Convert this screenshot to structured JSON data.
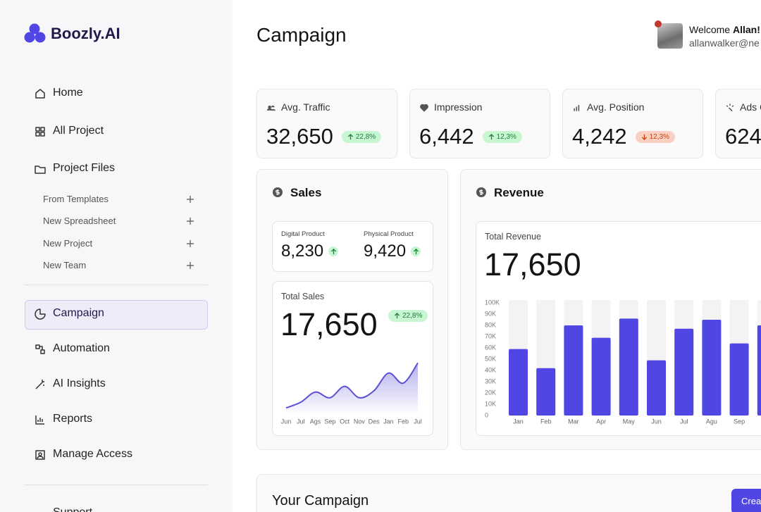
{
  "sidebar": {
    "logo": "Boozly.AI",
    "nav": [
      "Home",
      "All Project",
      "Project Files"
    ],
    "sub": [
      "From Templates",
      "New Spreadsheet",
      "New Project",
      "New Team"
    ],
    "nav2": [
      "Campaign",
      "Automation",
      "AI Insights",
      "Reports",
      "Manage Access"
    ],
    "active": "Campaign",
    "footer": "Support"
  },
  "header": {
    "title": "Campaign",
    "welcome": "Welcome",
    "user": "Allan!",
    "email": "allanwalker@ne"
  },
  "stats": [
    {
      "label": "Avg. Traffic",
      "value": "32,650",
      "change": "22,8%",
      "trend": "up"
    },
    {
      "label": "Impression",
      "value": "6,442",
      "change": "12,3%",
      "trend": "up"
    },
    {
      "label": "Avg. Position",
      "value": "4,242",
      "change": "12,3%",
      "trend": "down"
    },
    {
      "label": "Ads C",
      "value": "624"
    }
  ],
  "sales": {
    "title": "Sales",
    "digital": {
      "label": "Digital Product",
      "value": "8,230"
    },
    "physical": {
      "label": "Physical Product",
      "value": "9,420"
    },
    "total_label": "Total Sales",
    "total": "17,650",
    "change": "22,8%",
    "chart_data": {
      "type": "line",
      "categories": [
        "Jun",
        "Jul",
        "Ags",
        "Sep",
        "Oct",
        "Nov",
        "Des",
        "Jan",
        "Feb",
        "Jul"
      ],
      "values": [
        12,
        21,
        37,
        28,
        46,
        28,
        39,
        67,
        51,
        83
      ],
      "ylim": [
        0,
        100
      ],
      "color": "#5b4fd6"
    }
  },
  "revenue": {
    "title": "Revenue",
    "total_label": "Total Revenue",
    "total": "17,650",
    "chart_data": {
      "type": "bar",
      "categories": [
        "Jan",
        "Feb",
        "Mar",
        "Apr",
        "May",
        "Jun",
        "Jul",
        "Agu",
        "Sep",
        null
      ],
      "values": [
        59000,
        42000,
        80000,
        69000,
        86000,
        49000,
        77000,
        85000,
        64000,
        80000
      ],
      "ylim": [
        0,
        100000
      ],
      "yticks": [
        0,
        {
          "value": 10000,
          "label": "10K"
        },
        {
          "value": 20000,
          "label": "20K"
        },
        {
          "value": 30000,
          "label": "30K"
        },
        {
          "value": 40000,
          "label": "40K"
        },
        {
          "value": 50000,
          "label": "50K"
        },
        {
          "value": 60000,
          "label": "60K"
        },
        {
          "value": 70000,
          "label": "70K"
        },
        {
          "value": 80000,
          "label": "80K"
        },
        {
          "value": 90000,
          "label": "90K"
        },
        {
          "value": 100000,
          "label": "100K"
        }
      ],
      "color": "#5046e4"
    }
  },
  "campaign": {
    "title": "Your Campaign",
    "button": "Crea"
  }
}
